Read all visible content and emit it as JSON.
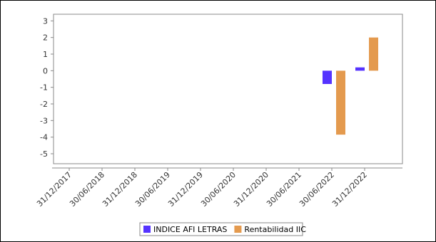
{
  "chart_data": {
    "type": "bar",
    "categories": [
      "31/12/2017",
      "30/06/2018",
      "31/12/2018",
      "30/06/2019",
      "31/12/2019",
      "30/06/2020",
      "31/12/2020",
      "30/06/2021",
      "30/06/2022",
      "31/12/2022"
    ],
    "series": [
      {
        "name": "INDICE AFI LETRAS",
        "color": "#5533ff",
        "values": [
          null,
          null,
          null,
          null,
          null,
          null,
          null,
          null,
          -0.8,
          0.2
        ]
      },
      {
        "name": "Rentabilidad IIC",
        "color": "#e49a4e",
        "values": [
          null,
          null,
          null,
          null,
          null,
          null,
          null,
          null,
          -3.85,
          2.0
        ]
      }
    ],
    "ylim": [
      -5.6,
      3.4
    ],
    "yticks": [
      3,
      2,
      1,
      0,
      -1,
      -2,
      -3,
      -4,
      -5
    ],
    "title": "",
    "xlabel": "",
    "ylabel": "",
    "grid": false,
    "legend_position": "bottom"
  }
}
